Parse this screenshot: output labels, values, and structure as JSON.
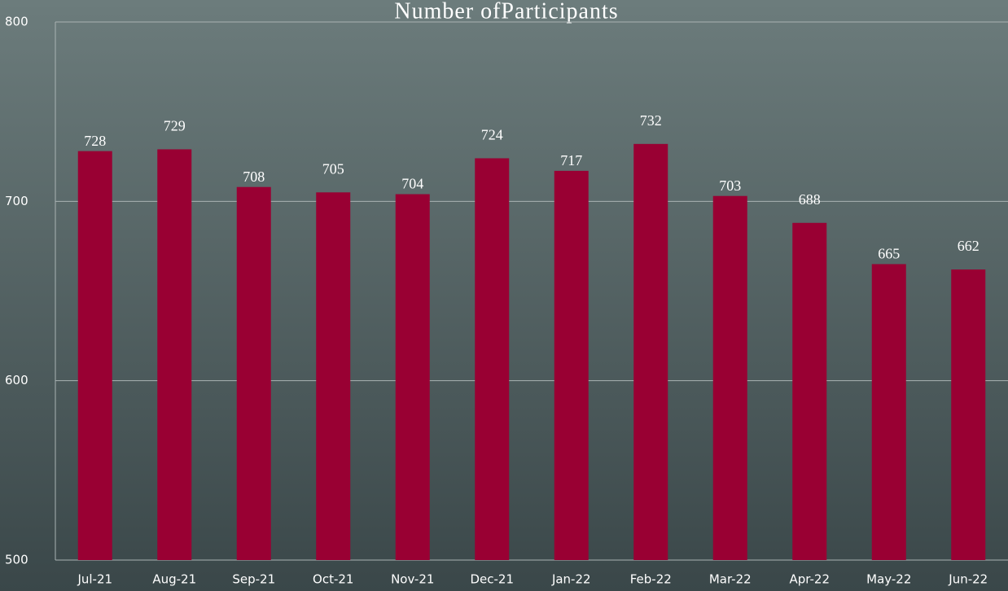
{
  "chart_data": {
    "type": "bar",
    "title": "Number ofParticipants",
    "categories": [
      "Jul-21",
      "Aug-21",
      "Sep-21",
      "Oct-21",
      "Nov-21",
      "Dec-21",
      "Jan-22",
      "Feb-22",
      "Mar-22",
      "Apr-22",
      "May-22",
      "Jun-22"
    ],
    "values": [
      728,
      729,
      708,
      705,
      704,
      724,
      717,
      732,
      703,
      688,
      665,
      662
    ],
    "color": "#990033",
    "ylim": [
      500,
      800
    ],
    "yticks": [
      500,
      600,
      700,
      800
    ],
    "grid": true
  }
}
